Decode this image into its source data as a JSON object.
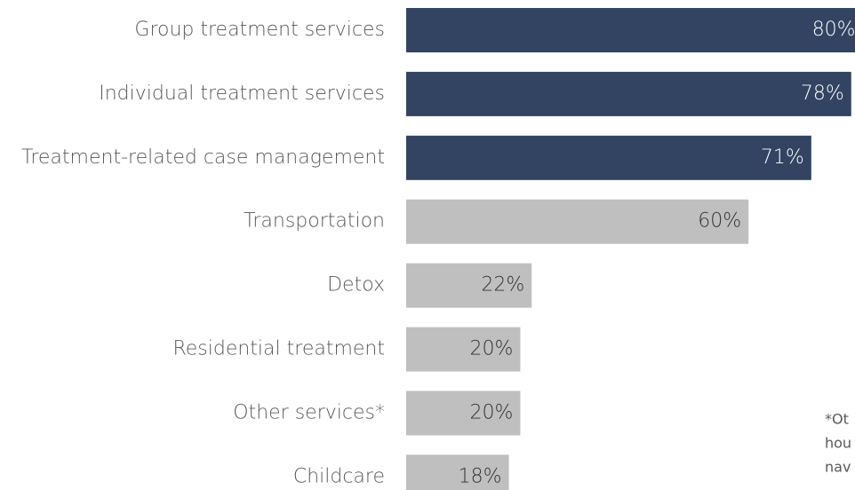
{
  "chart_data": {
    "type": "hbar",
    "categories": [
      "Group treatment services",
      "Individual treatment services",
      "Treatment-related case management",
      "Transportation",
      "Detox",
      "Residential treatment",
      "Other services*",
      "Childcare"
    ],
    "values": [
      80,
      78,
      71,
      60,
      22,
      20,
      20,
      18
    ],
    "value_labels": [
      "80%",
      "78%",
      "71%",
      "60%",
      "22%",
      "20%",
      "20%",
      "18%"
    ],
    "colors": [
      "#324462",
      "#324462",
      "#324462",
      "#bfbfbf",
      "#bfbfbf",
      "#bfbfbf",
      "#bfbfbf",
      "#bfbfbf"
    ],
    "annotations": [
      "*Ot",
      "hou",
      "nav"
    ]
  }
}
